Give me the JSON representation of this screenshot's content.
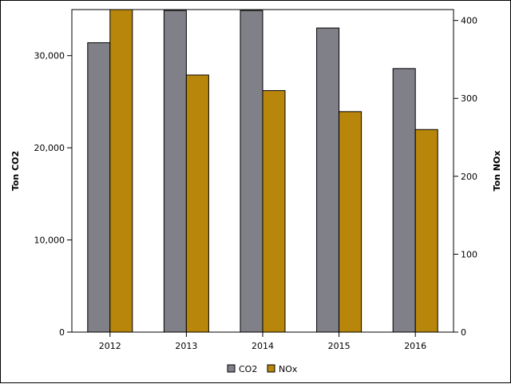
{
  "chart_data": {
    "type": "bar",
    "categories": [
      "2012",
      "2013",
      "2014",
      "2015",
      "2016"
    ],
    "series": [
      {
        "name": "CO2",
        "axis": "left",
        "color": "#808088",
        "values": [
          31400,
          34900,
          34900,
          33000,
          28600
        ]
      },
      {
        "name": "NOx",
        "axis": "right",
        "color": "#b8860b",
        "values": [
          414,
          330,
          310,
          283,
          260
        ]
      }
    ],
    "y_left": {
      "label": "Ton CO2",
      "range": [
        0,
        35000
      ],
      "ticks": [
        0,
        10000,
        20000,
        30000
      ],
      "tick_labels": [
        "0",
        "10,000",
        "20,000",
        "30,000"
      ]
    },
    "y_right": {
      "label": "Ton NOx",
      "range": [
        0,
        414
      ],
      "ticks": [
        0,
        100,
        200,
        300,
        400
      ],
      "tick_labels": [
        "0",
        "100",
        "200",
        "300",
        "400"
      ]
    },
    "legend_position": "bottom-center",
    "grid": false
  }
}
